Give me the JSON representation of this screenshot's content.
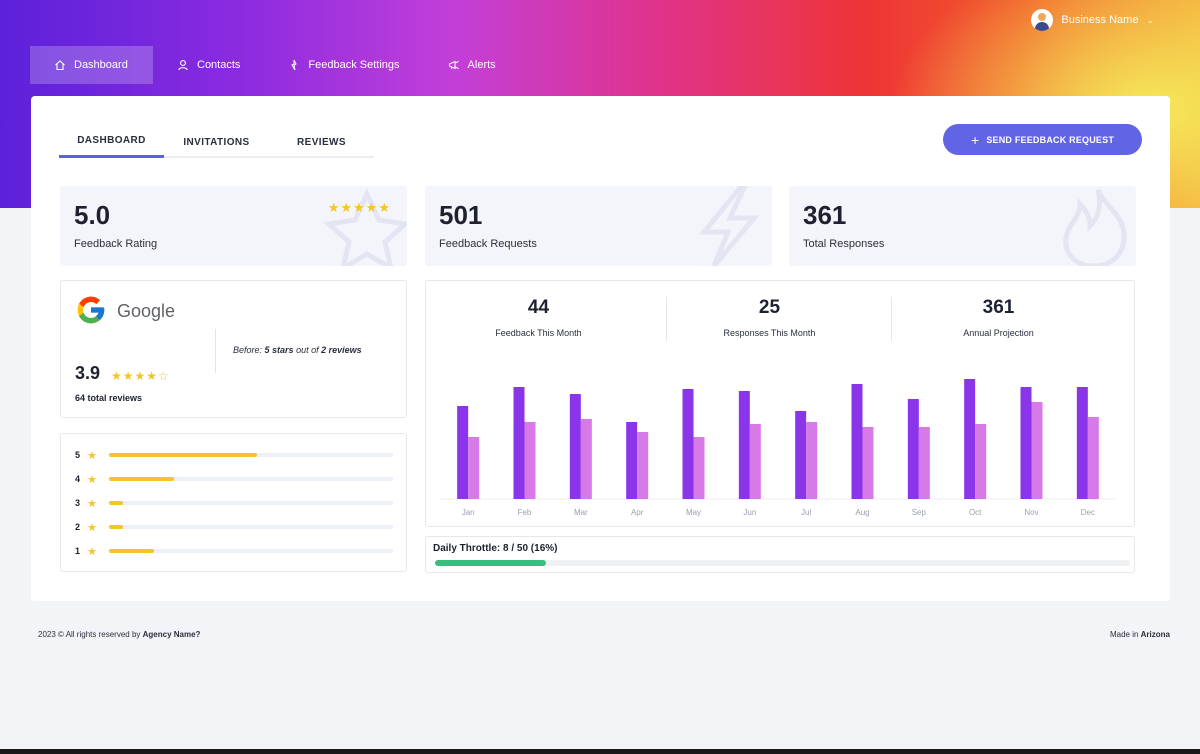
{
  "colors": {
    "accent": "#6264e6",
    "star": "#f3c623",
    "bar_primary": "#8a35ea",
    "bar_secondary": "#d779e6",
    "throttle": "#3dbd7d"
  },
  "topbar": {
    "user_name": "Business Name",
    "caret": "⌄"
  },
  "nav": {
    "items": [
      {
        "label": "Dashboard",
        "icon": "home-icon"
      },
      {
        "label": "Contacts",
        "icon": "user-icon"
      },
      {
        "label": "Feedback Settings",
        "icon": "sliders-icon"
      },
      {
        "label": "Alerts",
        "icon": "megaphone-icon"
      }
    ]
  },
  "tabs": [
    "DASHBOARD",
    "INVITATIONS",
    "REVIEWS"
  ],
  "send_button": {
    "icon": "+",
    "label": "SEND FEEDBACK REQUEST"
  },
  "stats": [
    {
      "value": "5.0",
      "label": "Feedback Rating",
      "stars": "★★★★★",
      "watermark": "star-icon"
    },
    {
      "value": "501",
      "label": "Feedback Requests",
      "watermark": "lightning-icon"
    },
    {
      "value": "361",
      "label": "Total Responses",
      "watermark": "flame-icon"
    }
  ],
  "google": {
    "name": "Google",
    "before_prefix": "Before: ",
    "before_stars": "5 stars",
    "before_mid": " out of ",
    "before_reviews": "2 reviews",
    "rating": "3.9",
    "stars": "★★★★☆",
    "total": "64 total reviews"
  },
  "distribution": [
    {
      "star": "5",
      "fraction": 0.52
    },
    {
      "star": "4",
      "fraction": 0.23
    },
    {
      "star": "3",
      "fraction": 0.05
    },
    {
      "star": "2",
      "fraction": 0.05
    },
    {
      "star": "1",
      "fraction": 0.16
    }
  ],
  "kpis": [
    {
      "value": "44",
      "label": "Feedback This Month"
    },
    {
      "value": "25",
      "label": "Responses This Month"
    },
    {
      "value": "361",
      "label": "Annual Projection"
    }
  ],
  "chart_data": {
    "type": "bar",
    "categories": [
      "Jan",
      "Feb",
      "Mar",
      "Apr",
      "May",
      "Jun",
      "Jul",
      "Aug",
      "Sep",
      "Oct",
      "Nov",
      "Dec"
    ],
    "series": [
      {
        "values": [
          93,
          112,
          105,
          77,
          110,
          108,
          88,
          115,
          100,
          120,
          112,
          112
        ]
      },
      {
        "values": [
          62,
          77,
          80,
          67,
          62,
          75,
          77,
          72,
          72,
          75,
          97,
          82
        ]
      }
    ],
    "ylim": [
      0,
      125
    ],
    "grid": false
  },
  "throttle": {
    "label": "Daily Throttle: 8 / 50 (16%)",
    "fraction": 0.16
  },
  "footer": {
    "left_prefix": "2023 © All rights reserved by ",
    "left_bold": "Agency Name?",
    "right_prefix": "Made in ",
    "right_bold": "Arizona"
  }
}
